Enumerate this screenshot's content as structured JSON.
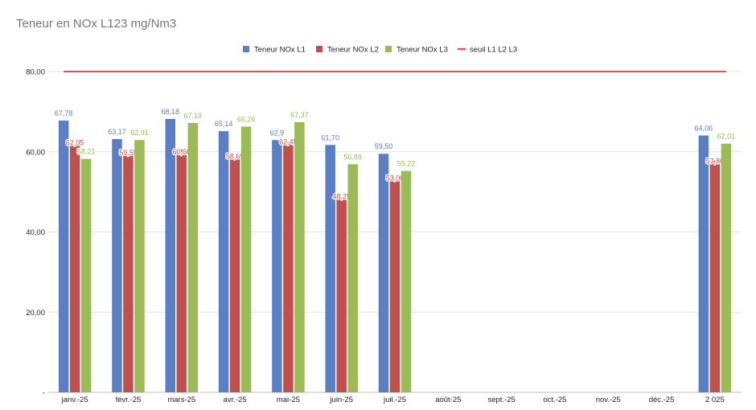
{
  "chart_data": {
    "type": "bar",
    "title": "Teneur en NOx L123 mg/Nm3",
    "categories": [
      "janv.-25",
      "févr.-25",
      "mars-25",
      "avr.-25",
      "mai-25",
      "juin-25",
      "juil.-25",
      "août-25",
      "sept.-25",
      "oct.-25",
      "nov.-25",
      "déc.-25",
      "2 025"
    ],
    "series": [
      {
        "name": "Teneur NOx L1",
        "color": "#5b7fc4",
        "values": [
          67.78,
          63.17,
          68.18,
          65.14,
          62.9,
          61.7,
          59.5,
          null,
          null,
          null,
          null,
          null,
          64.06
        ],
        "labels": [
          "67,78",
          "63,17",
          "68,18",
          "65,14",
          "62,9",
          "61,70",
          "59,50",
          "",
          "",
          "",
          "",
          "",
          "64,06"
        ]
      },
      {
        "name": "Teneur NOx L2",
        "color": "#c0504d",
        "values": [
          62.05,
          59.55,
          60.6,
          58.69,
          62.45,
          48.25,
          53.0,
          null,
          null,
          null,
          null,
          null,
          57.8
        ],
        "labels": [
          "62,05",
          "59,55",
          "60,60",
          "58,69",
          "62,45",
          "48,25",
          "53,00",
          "",
          "",
          "",
          "",
          "",
          "57,80"
        ]
      },
      {
        "name": "Teneur NOx L3",
        "color": "#9bbb59",
        "values": [
          58.21,
          62.91,
          67.19,
          66.26,
          67.37,
          56.89,
          55.22,
          null,
          null,
          null,
          null,
          null,
          62.01
        ],
        "labels": [
          "58,21",
          "62,91",
          "67,19",
          "66,26",
          "67,37",
          "56,89",
          "55,22",
          "",
          "",
          "",
          "",
          "",
          "62,01"
        ]
      }
    ],
    "threshold": {
      "name": "seuil L1 L2 L3",
      "value": 80,
      "color": "#f04a57"
    },
    "ylim": [
      0,
      80
    ],
    "yticks": [
      {
        "value": 0,
        "label": "-"
      },
      {
        "value": 20,
        "label": "20,00"
      },
      {
        "value": 40,
        "label": "40,00"
      },
      {
        "value": 60,
        "label": "60,00"
      },
      {
        "value": 80,
        "label": "80,00"
      }
    ],
    "grid": true,
    "legend_position": "top-center",
    "xlabel": "",
    "ylabel": ""
  }
}
